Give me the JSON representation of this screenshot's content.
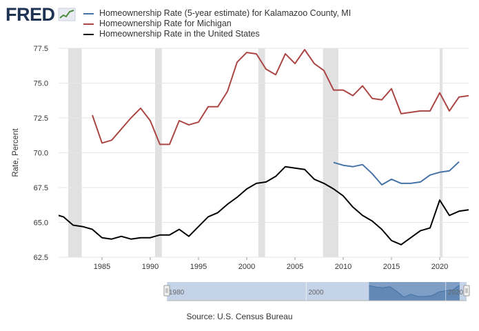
{
  "logo": {
    "text": "FRED",
    "icon": "fred-line-graph-icon"
  },
  "source": "Source: U.S. Census Bureau",
  "colors": {
    "county": "#4572a7",
    "michigan": "#aa4643",
    "us": "#000000",
    "recession": "#e1e1e1",
    "navigator_fill": "#c5d3e8",
    "navigator_selected": "#4572a7"
  },
  "chart_data": {
    "type": "line",
    "title": "",
    "xlabel": "",
    "ylabel": "Rate, Percent",
    "xlim": [
      1980.5,
      2023
    ],
    "ylim": [
      62.5,
      77.5
    ],
    "y_ticks": [
      "62.5",
      "65.0",
      "67.5",
      "70.0",
      "72.5",
      "75.0",
      "77.5"
    ],
    "x_ticks": [
      "1985",
      "1990",
      "1995",
      "2000",
      "2005",
      "2010",
      "2015",
      "2020"
    ],
    "grid": true,
    "legend_position": "top",
    "recessions": [
      [
        1981.5,
        1982.9
      ],
      [
        1990.5,
        1991.2
      ],
      [
        2001.2,
        2001.9
      ],
      [
        2007.9,
        2009.5
      ],
      [
        2020.0,
        2020.3
      ]
    ],
    "series": [
      {
        "name": "Homeownership Rate (5-year estimate) for Kalamazoo County, MI",
        "key": "county",
        "x": [
          2009,
          2010,
          2011,
          2012,
          2013,
          2014,
          2015,
          2016,
          2017,
          2018,
          2019,
          2020,
          2021,
          2022
        ],
        "y": [
          69.3,
          69.1,
          69.0,
          69.15,
          68.5,
          67.7,
          68.1,
          67.8,
          67.8,
          67.9,
          68.4,
          68.6,
          68.7,
          69.35
        ]
      },
      {
        "name": "Homeownership Rate for Michigan",
        "key": "michigan",
        "x": [
          1984,
          1985,
          1986,
          1987,
          1988,
          1989,
          1990,
          1991,
          1992,
          1993,
          1994,
          1995,
          1996,
          1997,
          1998,
          1999,
          2000,
          2001,
          2002,
          2003,
          2004,
          2005,
          2006,
          2007,
          2008,
          2009,
          2010,
          2011,
          2012,
          2013,
          2014,
          2015,
          2016,
          2017,
          2018,
          2019,
          2020,
          2021,
          2022,
          2023
        ],
        "y": [
          72.7,
          70.7,
          70.9,
          71.7,
          72.5,
          73.2,
          72.3,
          70.6,
          70.6,
          72.3,
          72.0,
          72.2,
          73.3,
          73.3,
          74.4,
          76.5,
          77.2,
          77.1,
          76.0,
          75.6,
          77.1,
          76.4,
          77.4,
          76.4,
          75.9,
          74.5,
          74.5,
          74.1,
          74.8,
          73.9,
          73.8,
          74.6,
          72.8,
          72.9,
          73.0,
          73.0,
          74.3,
          73.0,
          74.0,
          74.1
        ]
      },
      {
        "name": "Homeownership Rate in the United States",
        "key": "us",
        "x": [
          1980,
          1981,
          1982,
          1983,
          1984,
          1985,
          1986,
          1987,
          1988,
          1989,
          1990,
          1991,
          1992,
          1993,
          1994,
          1995,
          1996,
          1997,
          1998,
          1999,
          2000,
          2001,
          2002,
          2003,
          2004,
          2005,
          2006,
          2007,
          2008,
          2009,
          2010,
          2011,
          2012,
          2013,
          2014,
          2015,
          2016,
          2017,
          2018,
          2019,
          2020,
          2021,
          2022,
          2023
        ],
        "y": [
          65.6,
          65.4,
          64.8,
          64.7,
          64.5,
          63.9,
          63.8,
          64.0,
          63.8,
          63.9,
          63.9,
          64.1,
          64.1,
          64.5,
          64.0,
          64.7,
          65.4,
          65.7,
          66.3,
          66.8,
          67.4,
          67.8,
          67.9,
          68.3,
          69.0,
          68.9,
          68.8,
          68.1,
          67.8,
          67.4,
          66.9,
          66.1,
          65.5,
          65.1,
          64.5,
          63.7,
          63.4,
          63.9,
          64.4,
          64.6,
          66.6,
          65.5,
          65.8,
          65.9
        ]
      }
    ],
    "navigator": {
      "tick_labels": [
        "1980",
        "2000",
        "2020"
      ],
      "range": [
        1980,
        2023
      ],
      "selected": [
        2009,
        2022
      ]
    }
  }
}
